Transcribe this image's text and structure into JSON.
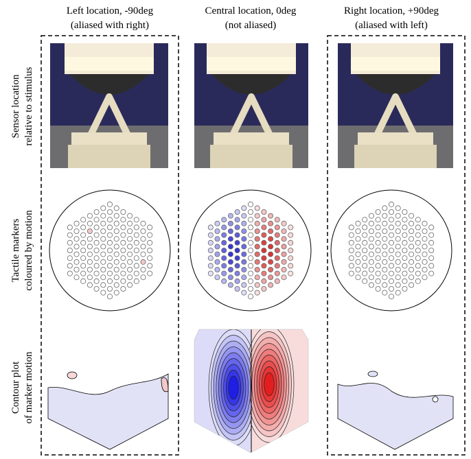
{
  "columns": [
    {
      "title": [
        "Left location, -90deg",
        "(aliased with right)"
      ]
    },
    {
      "title": [
        "Central location, 0deg",
        "(not aliased)"
      ]
    },
    {
      "title": [
        "Right location, +90deg",
        "(aliased with left)"
      ]
    }
  ],
  "rows": [
    {
      "label": [
        "Sensor location",
        "relative to stimulus"
      ]
    },
    {
      "label": [
        "Tactile markers",
        "coloured by motion"
      ]
    },
    {
      "label": [
        "Contour plot",
        "of marker motion"
      ]
    }
  ]
}
